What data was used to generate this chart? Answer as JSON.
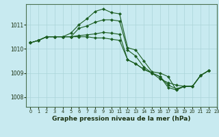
{
  "title": "Graphe pression niveau de la mer (hPa)",
  "background_color": "#c8eaf0",
  "grid_color": "#aad4d8",
  "line_color": "#1a5c20",
  "xlim": [
    -0.5,
    23
  ],
  "ylim": [
    1007.6,
    1011.85
  ],
  "yticks": [
    1008,
    1009,
    1010,
    1011
  ],
  "xticks": [
    0,
    1,
    2,
    3,
    4,
    5,
    6,
    7,
    8,
    9,
    10,
    11,
    12,
    13,
    14,
    15,
    16,
    17,
    18,
    19,
    20,
    21,
    22,
    23
  ],
  "series": [
    [
      1010.25,
      1010.35,
      1010.5,
      1010.5,
      1010.5,
      1010.65,
      1011.0,
      1011.25,
      1011.55,
      1011.65,
      1011.5,
      1011.45,
      1010.05,
      1009.95,
      1009.5,
      1009.05,
      1009.0,
      1008.85,
      1008.3,
      1008.45,
      1008.45,
      1008.9,
      1009.1,
      null
    ],
    [
      1010.25,
      1010.35,
      1010.5,
      1010.5,
      1010.5,
      1010.5,
      1010.85,
      1010.95,
      1011.1,
      1011.2,
      1011.2,
      1011.15,
      1009.95,
      1009.7,
      1009.25,
      1009.0,
      1008.75,
      1008.6,
      1008.5,
      1008.45,
      1008.45,
      1008.9,
      1009.1,
      null
    ],
    [
      1010.25,
      1010.35,
      1010.5,
      1010.5,
      1010.5,
      1010.5,
      1010.55,
      1010.58,
      1010.62,
      1010.68,
      1010.65,
      1010.6,
      1009.55,
      1009.38,
      1009.15,
      1009.0,
      1008.85,
      1008.5,
      1008.35,
      1008.45,
      1008.45,
      1008.9,
      1009.1,
      null
    ],
    [
      1010.25,
      1010.35,
      1010.5,
      1010.5,
      1010.5,
      1010.5,
      1010.5,
      1010.5,
      1010.45,
      1010.45,
      1010.4,
      1010.35,
      1009.55,
      1009.38,
      1009.15,
      1009.0,
      1008.85,
      1008.4,
      1008.3,
      1008.45,
      1008.45,
      1008.9,
      1009.1,
      null
    ]
  ],
  "tick_fontsize": 5.5,
  "xtick_fontsize": 4.8,
  "title_fontsize": 6.5,
  "marker_size": 2.2,
  "linewidth": 0.8
}
